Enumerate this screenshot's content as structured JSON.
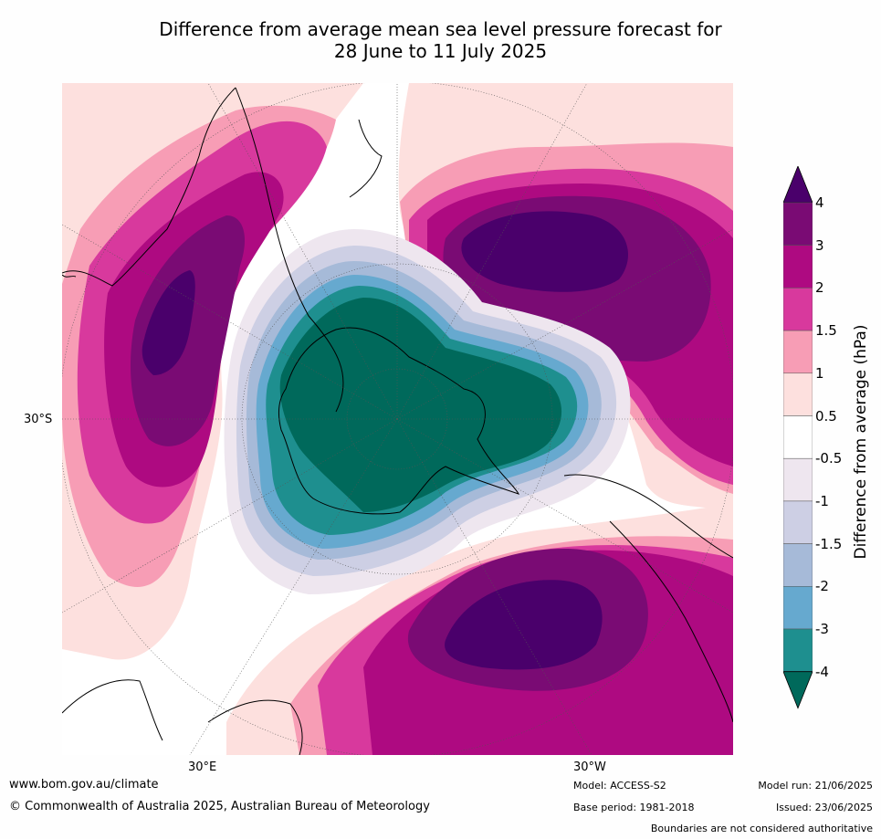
{
  "title": {
    "line1": "Difference from average mean sea level pressure forecast for",
    "line2": "28 June to 11 July 2025"
  },
  "map_labels": {
    "lat_left": "30°S",
    "lon_bottom_left": "30°E",
    "lon_bottom_right": "30°W"
  },
  "colorbar": {
    "label": "Difference from average (hPa)",
    "ticks": [
      "4",
      "3",
      "2",
      "1.5",
      "1",
      "0.5",
      "-0.5",
      "-1",
      "-1.5",
      "-2",
      "-3",
      "-4"
    ],
    "colors": [
      "#4a006b",
      "#7a0b74",
      "#ae0a81",
      "#d8399d",
      "#f79db5",
      "#fde0de",
      "#ffffff",
      "#eee6ef",
      "#cdcfe4",
      "#a6bad8",
      "#66a9cf",
      "#1e8f8f",
      "#00695b"
    ]
  },
  "footer": {
    "url": "www.bom.gov.au/climate",
    "copyright": "© Commonwealth of Australia 2025, Australian Bureau of Meteorology",
    "model": "Model: ACCESS-S2",
    "base_period": "Base period: 1981-2018",
    "model_run": "Model run: 21/06/2025",
    "issued": "Issued: 23/06/2025",
    "disclaimer": "Boundaries are not considered authoritative"
  }
}
